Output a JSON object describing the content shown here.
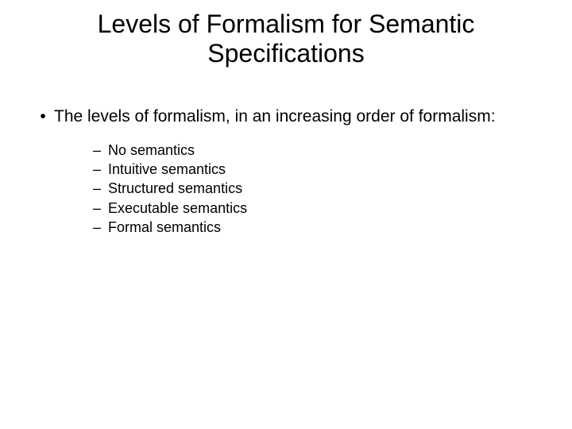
{
  "slide": {
    "title": "Levels of Formalism for Semantic Specifications",
    "title_fontsize": 32,
    "background_color": "#ffffff",
    "text_color": "#000000",
    "body": {
      "intro": {
        "bullet": "•",
        "text": "The levels of formalism, in an increasing order of formalism:",
        "fontsize": 21
      },
      "items": [
        {
          "dash": "–",
          "text": "No semantics"
        },
        {
          "dash": "–",
          "text": "Intuitive semantics"
        },
        {
          "dash": "–",
          "text": "Structured semantics"
        },
        {
          "dash": "–",
          "text": "Executable semantics"
        },
        {
          "dash": "–",
          "text": "Formal semantics"
        }
      ],
      "item_fontsize": 18
    }
  }
}
